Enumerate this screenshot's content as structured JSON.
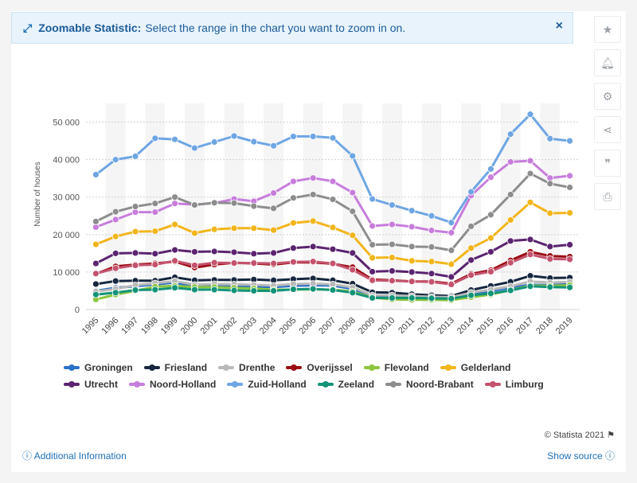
{
  "banner": {
    "title": "Zoomable Statistic:",
    "text": "Select the range in the chart you want to zoom in on.",
    "close": "×"
  },
  "sidebar_icons": [
    "star-icon",
    "bell-icon",
    "gear-icon",
    "share-icon",
    "quote-icon",
    "print-icon"
  ],
  "footer": {
    "credit": "© Statista 2021",
    "additional_info": "Additional Information",
    "show_source": "Show source"
  },
  "chart_data": {
    "type": "line",
    "title": "",
    "xlabel": "",
    "ylabel": "Number of houses",
    "ylim": [
      0,
      55000
    ],
    "yticks": [
      0,
      10000,
      20000,
      30000,
      40000,
      50000
    ],
    "ytick_labels": [
      "0",
      "10 000",
      "20 000",
      "30 000",
      "40 000",
      "50 000"
    ],
    "x": [
      "1995",
      "1996",
      "1997",
      "1998",
      "1999",
      "2000",
      "2001",
      "2002",
      "2003",
      "2004",
      "2005",
      "2006",
      "2007",
      "2008",
      "2009",
      "2010",
      "2011",
      "2012",
      "2013",
      "2014",
      "2015",
      "2016",
      "2017",
      "2018",
      "2019"
    ],
    "grid": "horizontal dashed",
    "legend_position": "bottom",
    "series": [
      {
        "name": "Groningen",
        "color": "#2a6fc9",
        "values": [
          5000,
          5800,
          6200,
          6700,
          7200,
          6100,
          6400,
          6300,
          6100,
          6000,
          6300,
          6500,
          6400,
          5500,
          3500,
          3500,
          3300,
          3100,
          3000,
          4200,
          5000,
          5800,
          6600,
          6500,
          6800
        ]
      },
      {
        "name": "Friesland",
        "color": "#16273f",
        "values": [
          6800,
          7600,
          7700,
          7700,
          8600,
          7800,
          7900,
          7900,
          8000,
          7800,
          8100,
          8300,
          7800,
          6900,
          4600,
          4500,
          4100,
          3800,
          3600,
          5200,
          6300,
          7400,
          9000,
          8400,
          8500
        ]
      },
      {
        "name": "Drenthe",
        "color": "#b9b9b9",
        "values": [
          4800,
          5500,
          6500,
          7000,
          7600,
          6600,
          6800,
          6700,
          6600,
          6400,
          6800,
          6900,
          6700,
          5900,
          3800,
          3800,
          3600,
          3400,
          3300,
          4500,
          5300,
          6200,
          7500,
          7200,
          7400
        ]
      },
      {
        "name": "Overijssel",
        "color": "#9b0d14",
        "values": [
          9500,
          11500,
          12000,
          12300,
          12800,
          11200,
          12000,
          12500,
          12300,
          12000,
          12600,
          12600,
          12200,
          11300,
          8000,
          7800,
          7500,
          7500,
          6900,
          9500,
          10500,
          13100,
          15400,
          14300,
          14100
        ]
      },
      {
        "name": "Flevoland",
        "color": "#8cc63f",
        "values": [
          2700,
          4000,
          5000,
          6100,
          6300,
          6000,
          6000,
          5800,
          5600,
          5300,
          5300,
          5400,
          5300,
          4800,
          3200,
          2700,
          2600,
          2600,
          2500,
          3300,
          4000,
          5200,
          6400,
          6300,
          6500
        ]
      },
      {
        "name": "Gelderland",
        "color": "#f2b51b",
        "values": [
          17400,
          19500,
          20800,
          20900,
          22700,
          20400,
          21400,
          21700,
          21700,
          21200,
          23100,
          23600,
          21900,
          19800,
          13800,
          13900,
          13000,
          12800,
          12100,
          16400,
          19100,
          23900,
          28600,
          25700,
          25800
        ]
      },
      {
        "name": "Utrecht",
        "color": "#5b2470",
        "values": [
          12300,
          15000,
          15100,
          14900,
          15900,
          15400,
          15500,
          15300,
          14900,
          15100,
          16400,
          16800,
          16100,
          15100,
          10100,
          10300,
          10000,
          9600,
          8700,
          13200,
          15400,
          18300,
          18700,
          16800,
          17300
        ]
      },
      {
        "name": "Noord-Holland",
        "color": "#c77ddb",
        "values": [
          22000,
          24000,
          26000,
          26000,
          28300,
          28000,
          28400,
          29500,
          28900,
          31100,
          34200,
          35100,
          34200,
          31200,
          22300,
          22700,
          22100,
          21100,
          20500,
          30400,
          35300,
          39400,
          39700,
          35100,
          35700
        ]
      },
      {
        "name": "Zuid-Holland",
        "color": "#6ea6e3",
        "values": [
          36000,
          40000,
          40900,
          45700,
          45400,
          43100,
          44700,
          46300,
          44800,
          43700,
          46200,
          46200,
          45800,
          41000,
          29500,
          27900,
          26400,
          25000,
          23200,
          31400,
          37500,
          46800,
          52100,
          45600,
          45000
        ]
      },
      {
        "name": "Zeeland",
        "color": "#139479",
        "values": [
          4000,
          4500,
          5200,
          5300,
          5800,
          5300,
          5300,
          5100,
          5000,
          5000,
          5400,
          5500,
          5200,
          4500,
          3100,
          3100,
          3100,
          3000,
          2900,
          3800,
          4300,
          5100,
          6200,
          6000,
          5900
        ]
      },
      {
        "name": "Noord-Brabant",
        "color": "#8d8d8d",
        "values": [
          23500,
          26100,
          27500,
          28300,
          30000,
          27900,
          28500,
          28400,
          27600,
          27000,
          29800,
          30700,
          29400,
          26200,
          17300,
          17400,
          16800,
          16700,
          15800,
          22200,
          25300,
          30700,
          36300,
          33600,
          32600
        ]
      },
      {
        "name": "Limburg",
        "color": "#c4536e",
        "values": [
          9600,
          11000,
          11800,
          12000,
          13000,
          11800,
          12500,
          12400,
          12400,
          12300,
          12700,
          12800,
          12300,
          10600,
          7800,
          7700,
          7500,
          7400,
          6700,
          9200,
          10100,
          12500,
          14700,
          13500,
          13400
        ]
      }
    ]
  }
}
